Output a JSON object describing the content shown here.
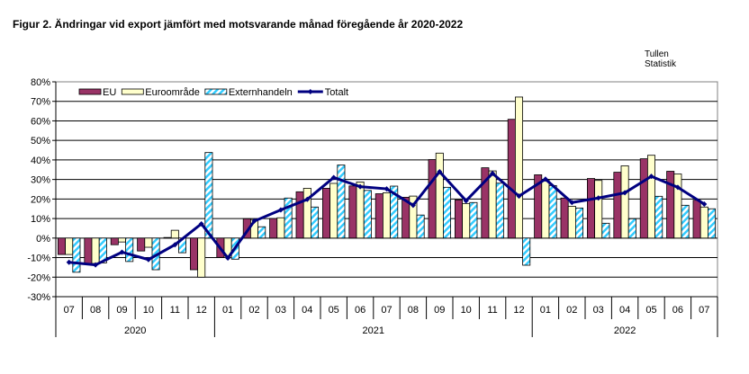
{
  "title": "Figur  2. Ändringar vid  export jämfört med motsvarande månad föregående år 2020-2022",
  "source": [
    "Tullen",
    "Statistik"
  ],
  "chart_data": {
    "type": "bar",
    "title": "Figur  2. Ändringar vid  export jämfört med motsvarande månad föregående år 2020-2022",
    "categories": [
      "07",
      "08",
      "09",
      "10",
      "11",
      "12",
      "01",
      "02",
      "03",
      "04",
      "05",
      "06",
      "07",
      "08",
      "09",
      "10",
      "11",
      "12",
      "01",
      "02",
      "03",
      "04",
      "05",
      "06",
      "07"
    ],
    "years": [
      {
        "label": "2020",
        "count": 6
      },
      {
        "label": "2021",
        "count": 12
      },
      {
        "label": "2022",
        "count": 7
      }
    ],
    "ylim": [
      -30,
      80
    ],
    "yticks": [
      -30,
      -20,
      -10,
      0,
      10,
      20,
      30,
      40,
      50,
      60,
      70,
      80
    ],
    "ytick_suffix": "%",
    "grid": true,
    "legend_placement": "top",
    "series": [
      {
        "name": "EU",
        "type": "bar",
        "color": "#993366",
        "values": [
          -8.4,
          -13,
          -3.4,
          -6.6,
          0.3,
          -16.2,
          -9.9,
          9.9,
          10,
          23.7,
          25.5,
          26.7,
          22.7,
          20.9,
          40.2,
          19.5,
          36,
          60.8,
          32.4,
          20.5,
          30.5,
          33.7,
          40.6,
          34.2,
          19.4
        ]
      },
      {
        "name": "Euroområde",
        "type": "bar",
        "color": "#ffffcc",
        "values": [
          -8.4,
          -13,
          -2,
          -4.7,
          4,
          -20,
          -10,
          9.5,
          10.4,
          25.5,
          28,
          28.7,
          23.2,
          21.5,
          43.5,
          17.7,
          34.4,
          72.2,
          30,
          16.3,
          29.5,
          37,
          42.4,
          32.8,
          15.9
        ]
      },
      {
        "name": "Externhandeln",
        "type": "bar",
        "color": "#33ccff",
        "values": [
          -17.5,
          -12.7,
          -12,
          -16.2,
          -7.5,
          43.8,
          -10.8,
          5.8,
          20.5,
          15.9,
          37.4,
          24.4,
          26.6,
          11.8,
          26,
          18.2,
          28.1,
          -13.9,
          26.9,
          15.4,
          7.6,
          9.9,
          21.4,
          16.8,
          15
        ]
      },
      {
        "name": "Totalt",
        "type": "line",
        "color": "#000080",
        "values": [
          -12.4,
          -13.7,
          -7.2,
          -11,
          -3.4,
          7.3,
          -10.2,
          8.7,
          14.4,
          19.8,
          31,
          26.3,
          25.2,
          16.8,
          34,
          19.1,
          33.1,
          21.5,
          30.2,
          18.2,
          20.5,
          23.2,
          31.6,
          26,
          17.4
        ]
      }
    ]
  }
}
